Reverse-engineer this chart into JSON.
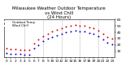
{
  "title": "Milwaukee Weather Outdoor Temperature\nvs Wind Chill\n(24 Hours)",
  "title_fontsize": 4.0,
  "background_color": "#ffffff",
  "plot_bg_color": "#ffffff",
  "grid_color": "#888888",
  "temp_color": "#dd0000",
  "windchill_color": "#0000cc",
  "marker_size": 2.0,
  "hours": [
    0,
    1,
    2,
    3,
    4,
    5,
    6,
    7,
    8,
    9,
    10,
    11,
    12,
    13,
    14,
    15,
    16,
    17,
    18,
    19,
    20,
    21,
    22,
    23
  ],
  "hour_labels": [
    "0",
    "1",
    "2",
    "3",
    "4",
    "5",
    "6",
    "7",
    "8",
    "9",
    "10",
    "11",
    "12",
    "13",
    "14",
    "15",
    "16",
    "17",
    "18",
    "19",
    "20",
    "21",
    "22",
    "23"
  ],
  "temp": [
    14,
    13,
    13,
    12,
    12,
    12,
    22,
    28,
    34,
    38,
    41,
    44,
    47,
    49,
    50,
    51,
    50,
    50,
    48,
    46,
    43,
    38,
    33,
    30
  ],
  "windchill": [
    7,
    6,
    5,
    5,
    4,
    4,
    14,
    20,
    26,
    30,
    32,
    35,
    38,
    40,
    41,
    42,
    41,
    41,
    39,
    37,
    34,
    29,
    24,
    21
  ],
  "ylim": [
    0,
    60
  ],
  "ytick_values": [
    10,
    20,
    30,
    40,
    50,
    60
  ],
  "ytick_labels": [
    "10",
    "20",
    "30",
    "40",
    "50",
    "60"
  ],
  "vgrid_hours": [
    4,
    8,
    12,
    16,
    20
  ],
  "tick_fontsize": 3.2,
  "legend_entries": [
    "Outdoor Temp",
    "Wind Chill"
  ],
  "legend_fontsize": 2.8
}
